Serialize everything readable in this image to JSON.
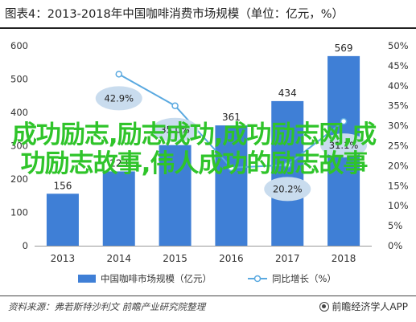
{
  "title": "图表4：2013-2018年中国咖啡消费市场规模（单位：亿元，%）",
  "source": "资料来源：弗若斯特沙利文 前瞻产业研究院整理",
  "brand": "前瞻经济学人APP",
  "overlay_text": "成功励志,励志成功,成功励志网,成功励志故事,伟人成功的励志故事",
  "colors": {
    "bar": "#3f7fd6",
    "line": "#5aa9e0",
    "label_bubble": "#c9dcee",
    "overlay": "#2fc42a"
  },
  "chart_data": {
    "type": "bar",
    "categories": [
      "2013",
      "2014",
      "2015",
      "2016",
      "2017",
      "2018"
    ],
    "series": [
      {
        "name": "中国咖啡市场规模（亿元）",
        "type": "bar",
        "axis": "left",
        "values": [
          156,
          223,
          302,
          361,
          434,
          569
        ],
        "labels": [
          "156",
          "223",
          "",
          "361",
          "434",
          "569"
        ]
      },
      {
        "name": "同比增长（%）",
        "type": "line",
        "axis": "right",
        "values": [
          null,
          42.9,
          35.0,
          19.5,
          20.2,
          31.1
        ],
        "labels": [
          "",
          "42.9%",
          "35.0%",
          "",
          "20.2%",
          "31.1%"
        ]
      }
    ],
    "left_axis": {
      "min": 0,
      "max": 600,
      "ticks": [
        "0",
        "100",
        "200",
        "300",
        "400",
        "500",
        "600"
      ]
    },
    "right_axis": {
      "min": 0,
      "max": 50,
      "ticks": [
        "0%",
        "5%",
        "10%",
        "15%",
        "20%",
        "25%",
        "30%",
        "35%",
        "40%",
        "45%",
        "50%"
      ]
    },
    "legend": [
      "中国咖啡市场规模（亿元）",
      "同比增长（%）"
    ],
    "legend_position": "bottom",
    "grid": false
  }
}
